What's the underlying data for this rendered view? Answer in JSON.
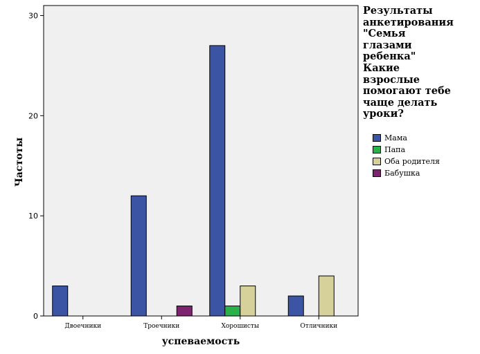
{
  "chart_data": {
    "type": "bar",
    "title": "Результаты\nанкетирования\n\"Семья\nглазами\nребенка\"\nКакие\nвзрослые\nпомогают тебе\nчаще делать\nуроки?",
    "xlabel": "успеваемость",
    "ylabel": "Частоты",
    "categories": [
      "Двоечники",
      "Троечники",
      "Хорошисты",
      "Отличники"
    ],
    "ylim": [
      0,
      31
    ],
    "yticks": [
      0,
      10,
      20,
      30
    ],
    "grid": false,
    "legend_position": "right",
    "series": [
      {
        "name": "Мама",
        "color": "#3b54a4",
        "values": [
          3,
          12,
          27,
          2
        ]
      },
      {
        "name": "Папа",
        "color": "#2bb14a",
        "values": [
          0,
          0,
          1,
          0
        ]
      },
      {
        "name": "Оба родителя",
        "color": "#d6d19a",
        "values": [
          0,
          0,
          3,
          4
        ]
      },
      {
        "name": "Бабушка",
        "color": "#7d2470",
        "values": [
          0,
          1,
          0,
          0
        ]
      }
    ]
  }
}
